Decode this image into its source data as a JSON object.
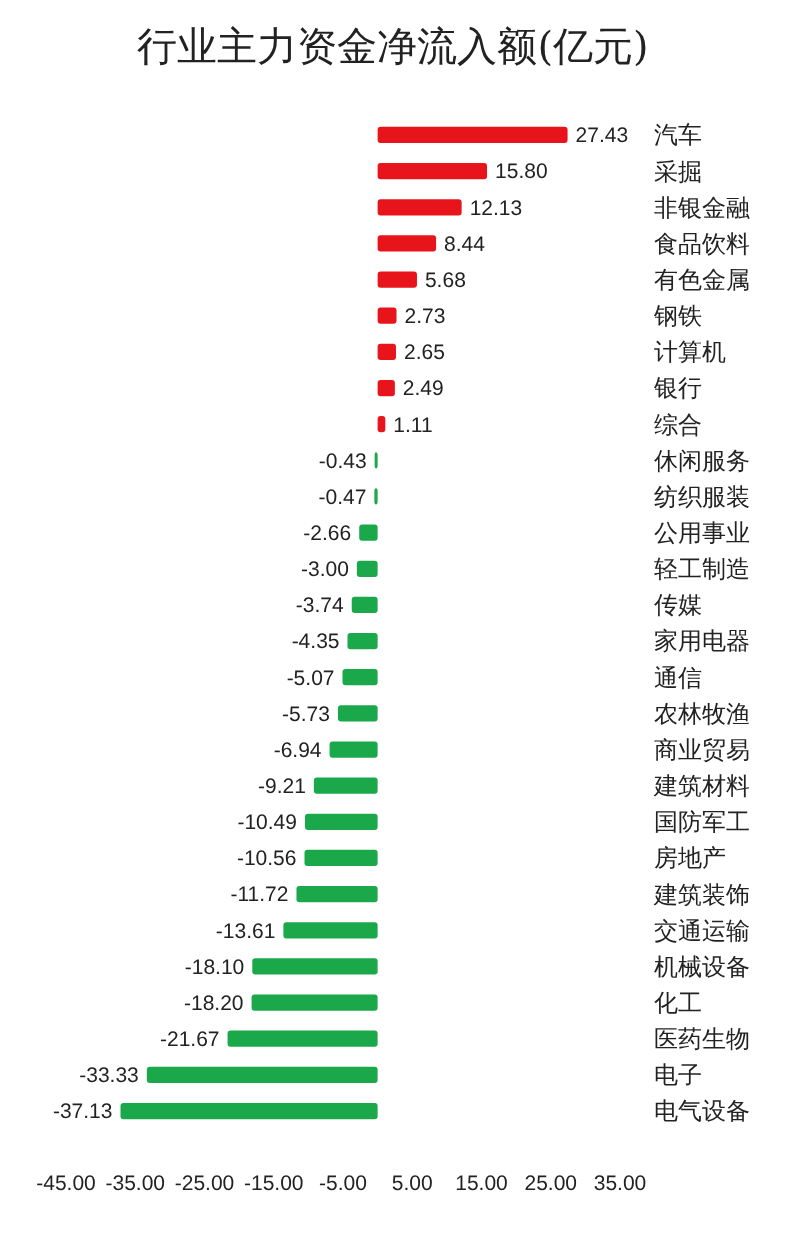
{
  "chart_data": {
    "type": "bar",
    "orientation": "horizontal",
    "title": "行业主力资金净流入额(亿元)",
    "categories": [
      "汽车",
      "采掘",
      "非银金融",
      "食品饮料",
      "有色金属",
      "钢铁",
      "计算机",
      "银行",
      "综合",
      "休闲服务",
      "纺织服装",
      "公用事业",
      "轻工制造",
      "传媒",
      "家用电器",
      "通信",
      "农林牧渔",
      "商业贸易",
      "建筑材料",
      "国防军工",
      "房地产",
      "建筑装饰",
      "交通运输",
      "机械设备",
      "化工",
      "医药生物",
      "电子",
      "电气设备"
    ],
    "values": [
      27.43,
      15.8,
      12.13,
      8.44,
      5.68,
      2.73,
      2.65,
      2.49,
      1.11,
      -0.43,
      -0.47,
      -2.66,
      -3.0,
      -3.74,
      -4.35,
      -5.07,
      -5.73,
      -6.94,
      -9.21,
      -10.49,
      -10.56,
      -11.72,
      -13.61,
      -18.1,
      -18.2,
      -21.67,
      -33.33,
      -37.13
    ],
    "value_labels": [
      "27.43",
      "15.80",
      "12.13",
      "8.44",
      "5.68",
      "2.73",
      "2.65",
      "2.49",
      "1.11",
      "-0.43",
      "-0.47",
      "-2.66",
      "-3.00",
      "-3.74",
      "-4.35",
      "-5.07",
      "-5.73",
      "-6.94",
      "-9.21",
      "-10.49",
      "-10.56",
      "-11.72",
      "-13.61",
      "-18.10",
      "-18.20",
      "-21.67",
      "-33.33",
      "-37.13"
    ],
    "colors": [
      "#e8141b",
      "#e8141b",
      "#e8141b",
      "#e8141b",
      "#e8141b",
      "#e8141b",
      "#e8141b",
      "#e8141b",
      "#e8141b",
      "#1aa84a",
      "#1aa84a",
      "#1aa84a",
      "#1aa84a",
      "#1aa84a",
      "#1aa84a",
      "#1aa84a",
      "#1aa84a",
      "#1aa84a",
      "#1aa84a",
      "#1aa84a",
      "#1aa84a",
      "#1aa84a",
      "#1aa84a",
      "#1aa84a",
      "#1aa84a",
      "#1aa84a",
      "#1aa84a",
      "#1aa84a"
    ],
    "xlim": [
      -45,
      35
    ],
    "xticks": [
      {
        "value": -45,
        "label": "-45.00"
      },
      {
        "value": -35,
        "label": "-35.00"
      },
      {
        "value": -25,
        "label": "-25.00"
      },
      {
        "value": -15,
        "label": "-15.00"
      },
      {
        "value": -5,
        "label": "-5.00"
      },
      {
        "value": 5,
        "label": "5.00"
      },
      {
        "value": 15,
        "label": "15.00"
      },
      {
        "value": 25,
        "label": "25.00"
      },
      {
        "value": 35,
        "label": "35.00"
      }
    ],
    "grid": false
  }
}
